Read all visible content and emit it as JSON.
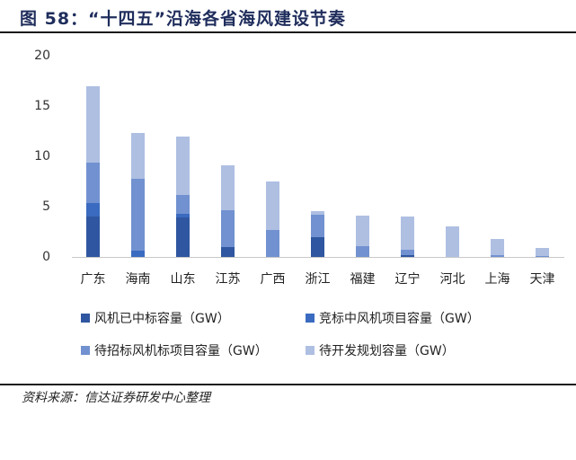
{
  "header": {
    "title": "图 58：“十四五”沿海各省海风建设节奏"
  },
  "footer": {
    "source": "资料来源：信达证券研发中心整理"
  },
  "chart_data": {
    "type": "bar",
    "stacked": true,
    "title": "“十四五”沿海各省海风建设节奏",
    "xlabel": "",
    "ylabel": "",
    "ylim": [
      0,
      20
    ],
    "yticks": [
      0,
      5,
      10,
      15,
      20
    ],
    "grid": false,
    "legend_position": "bottom",
    "categories": [
      "广东",
      "海南",
      "山东",
      "江苏",
      "广西",
      "浙江",
      "福建",
      "辽宁",
      "河北",
      "上海",
      "天津"
    ],
    "series": [
      {
        "name": "风机已中标容量（GW）",
        "color": "#2f56a0",
        "values": [
          4.0,
          0,
          3.9,
          1.0,
          0,
          2.0,
          0,
          0.2,
          0,
          0,
          0
        ]
      },
      {
        "name": "竞标中风机项目容量（GW）",
        "color": "#3a6bc0",
        "values": [
          1.4,
          0.6,
          0.4,
          0,
          0,
          0,
          0,
          0,
          0,
          0,
          0
        ]
      },
      {
        "name": "待招标风机标项目容量（GW）",
        "color": "#7191d0",
        "values": [
          4.0,
          7.2,
          1.9,
          3.6,
          2.7,
          2.2,
          1.1,
          0.5,
          0,
          0.2,
          0.1
        ]
      },
      {
        "name": "待开发规划容量（GW）",
        "color": "#aebfe2",
        "values": [
          7.6,
          4.5,
          5.8,
          4.5,
          4.8,
          0.4,
          3.0,
          3.3,
          3.0,
          1.6,
          0.8
        ]
      }
    ],
    "totals": [
      17.0,
      12.3,
      12.0,
      9.1,
      7.5,
      4.6,
      4.1,
      4.0,
      3.0,
      1.8,
      0.9
    ]
  }
}
